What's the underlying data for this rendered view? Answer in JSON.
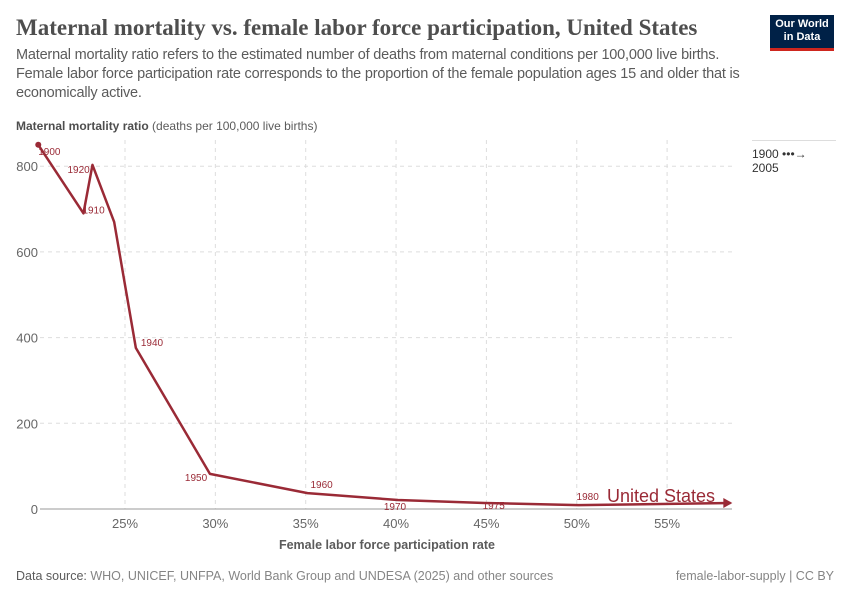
{
  "header": {
    "title": "Maternal mortality vs. female labor force participation, United States",
    "subtitle": "Maternal mortality ratio refers to the estimated number of deaths from maternal conditions per 100,000 live births. Female labor force participation rate corresponds to the proportion of the female population ages 15 and older that is economically active.",
    "logo": "Our World in Data"
  },
  "timeline": {
    "start": "1900",
    "end": "2005"
  },
  "chart_data": {
    "type": "line",
    "ylabel_bold": "Maternal mortality ratio",
    "ylabel_unit": "(deaths per 100,000 live births)",
    "xlabel": "Female labor force participation rate",
    "xlim": [
      20,
      58.6
    ],
    "ylim": [
      0,
      860
    ],
    "xticks": [
      "25%",
      "30%",
      "35%",
      "40%",
      "45%",
      "50%",
      "55%"
    ],
    "xtick_values": [
      25,
      30,
      35,
      40,
      45,
      50,
      55
    ],
    "yticks": [
      "0",
      "200",
      "400",
      "600",
      "800"
    ],
    "ytick_values": [
      0,
      200,
      400,
      600,
      800
    ],
    "grid": true,
    "series": [
      {
        "name": "United States",
        "color": "#9a2a36",
        "points": [
          {
            "year": 1900,
            "x": 20.2,
            "y": 850
          },
          {
            "year": 1910,
            "x": 22.7,
            "y": 690
          },
          {
            "year": 1920,
            "x": 23.2,
            "y": 803
          },
          {
            "year": 1930,
            "x": 24.4,
            "y": 670
          },
          {
            "year": 1940,
            "x": 25.6,
            "y": 376
          },
          {
            "year": 1950,
            "x": 29.7,
            "y": 82
          },
          {
            "year": 1960,
            "x": 35.1,
            "y": 37
          },
          {
            "year": 1970,
            "x": 40.1,
            "y": 21
          },
          {
            "year": 1975,
            "x": 44.9,
            "y": 14
          },
          {
            "year": 1980,
            "x": 50.1,
            "y": 9
          },
          {
            "year": 2005,
            "x": 58.5,
            "y": 14
          }
        ]
      }
    ],
    "point_labels": [
      "1900",
      "1910",
      "1920",
      "1940",
      "1950",
      "1960",
      "1970",
      "1975",
      "1980"
    ]
  },
  "footer": {
    "source_label": "Data source:",
    "source": "WHO, UNICEF, UNFPA, World Bank Group and UNDESA (2025) and other sources",
    "right": "female-labor-supply | CC BY"
  }
}
